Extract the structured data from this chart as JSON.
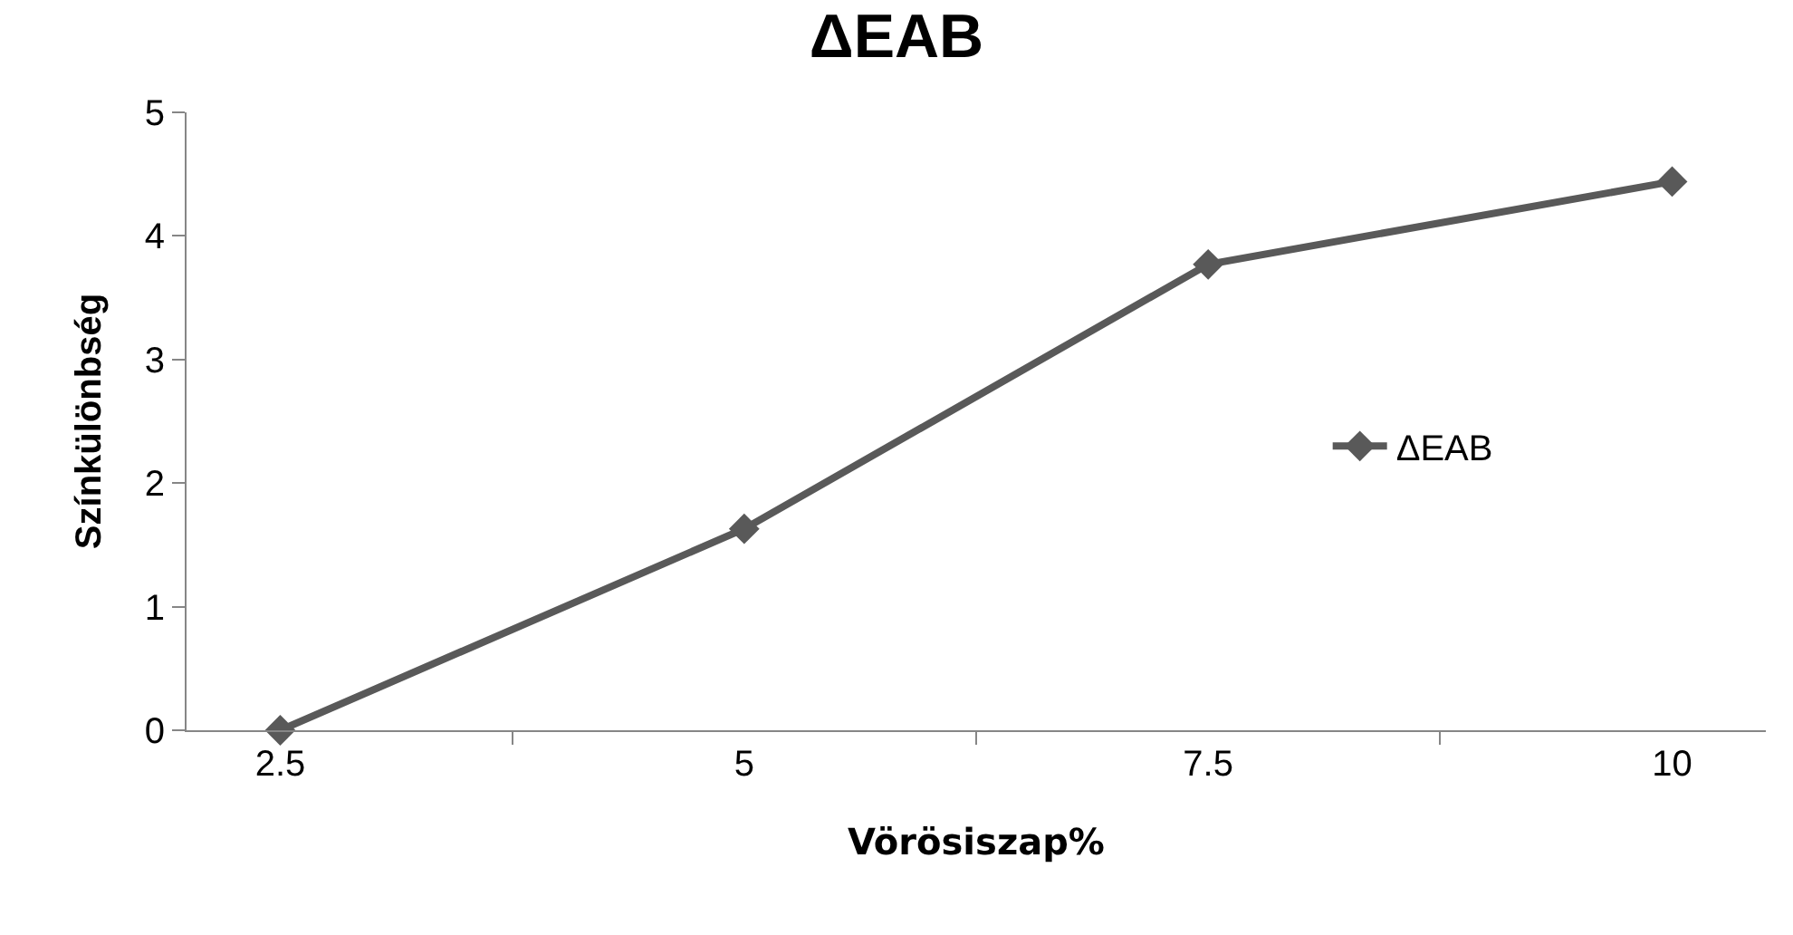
{
  "chart_data": {
    "type": "line",
    "title": "ΔEAB",
    "xlabel": "Vörösiszap%",
    "ylabel": "Színkülönbség",
    "categories": [
      "2.5",
      "5",
      "7.5",
      "10"
    ],
    "series": [
      {
        "name": "ΔEAB",
        "color": "#595959",
        "values": [
          0,
          1.63,
          3.77,
          4.44
        ]
      }
    ],
    "ylim": [
      0,
      5
    ],
    "yticks": [
      0,
      1,
      2,
      3,
      4,
      5
    ],
    "grid": false,
    "legend": "right",
    "marker": "diamond",
    "line_style": "solid"
  }
}
